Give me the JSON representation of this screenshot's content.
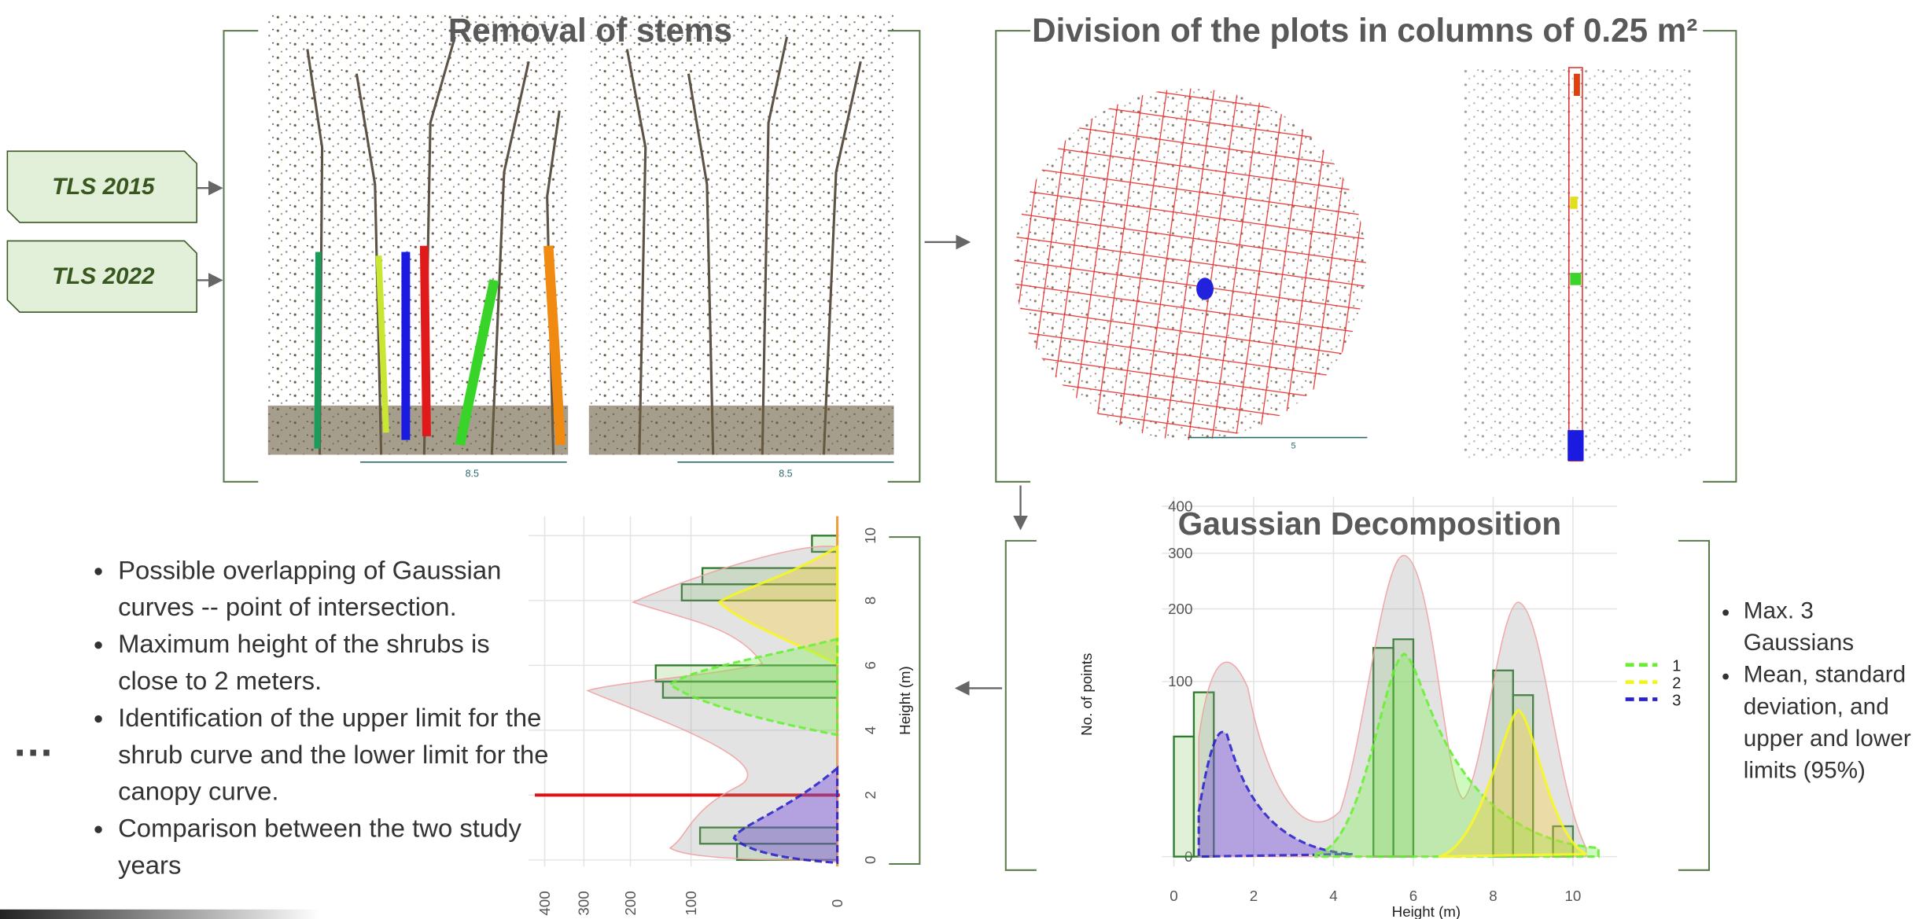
{
  "inputs": [
    "TLS 2015",
    "TLS 2022"
  ],
  "removal": {
    "title": "Removal of stems",
    "scale_labels": [
      "8.5",
      "8.5"
    ]
  },
  "division": {
    "title": "Division of the plots in columns of 0.25 m²",
    "scale_label": "5"
  },
  "gaussian_chart": {
    "type": "bar",
    "title": "Gaussian Decomposition",
    "y_label": "No. of points",
    "x_label": "Height (m)",
    "bins": [
      0,
      0.5,
      1,
      1.5,
      2,
      2.5,
      3,
      3.5,
      4,
      4.5,
      5,
      5.5,
      6,
      6.5,
      7,
      7.5,
      8,
      8.5,
      9,
      9.5,
      10
    ],
    "counts": [
      47,
      88,
      0,
      0,
      0,
      0,
      0,
      0,
      0,
      0,
      142,
      154,
      0,
      0,
      0,
      0,
      113,
      85,
      0,
      3
    ],
    "xlim": [
      -0.3,
      11.1
    ],
    "xticks": [
      0,
      2,
      4,
      6,
      8,
      10
    ],
    "ylim": [
      0,
      400
    ],
    "yticks": [
      0,
      100,
      200,
      300,
      400
    ],
    "y_scale": "sqrt",
    "legend": [
      {
        "name": "1",
        "color": "#66ee33"
      },
      {
        "name": "2",
        "color": "#f5f51e"
      },
      {
        "name": "3",
        "color": "#2a22c8"
      }
    ]
  },
  "height_chart": {
    "x_label": "Height (m)",
    "xlim": [
      -0.2,
      10.6
    ],
    "xticks": [
      0,
      2,
      4,
      6,
      8,
      10
    ],
    "ylim": [
      0,
      400
    ],
    "yticks": [
      400,
      300,
      200,
      100,
      0
    ],
    "threshold": 2
  },
  "limitations": [
    "Possible overlapping of Gaussian curves -- point of intersection.",
    "Maximum height of the shrubs is close to 2 meters.",
    "Identification of the upper limit for the shrub curve and the lower limit for the canopy curve.",
    "Comparison between the two study years"
  ],
  "ellipsis": "…",
  "outputs": [
    "Max. 3 Gaussians",
    "Mean, standard deviation, and upper and lower limits (95%)"
  ]
}
